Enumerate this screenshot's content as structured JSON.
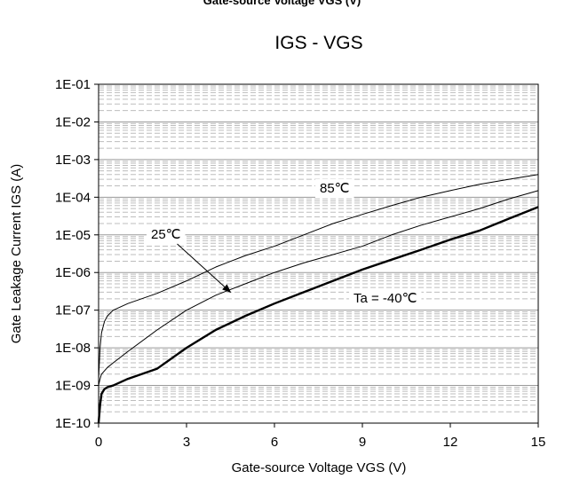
{
  "top_clipped_text": "Gate-source  Voltage VGS (V)",
  "chart_data": {
    "type": "line",
    "title": "IGS - VGS",
    "xlabel": "Gate-source Voltage VGS (V)",
    "ylabel": "Gate Leakage Current IGS (A)",
    "xlim": [
      0,
      15
    ],
    "ylim": [
      1e-10,
      0.1
    ],
    "yscale": "log",
    "grid": true,
    "x_ticks": [
      "0",
      "3",
      "6",
      "9",
      "12",
      "15"
    ],
    "y_ticks": [
      "1E-10",
      "1E-09",
      "1E-08",
      "1E-07",
      "1E-06",
      "1E-05",
      "1E-04",
      "1E-03",
      "1E-02",
      "1E-01"
    ],
    "series": [
      {
        "name": "85℃",
        "x": [
          0,
          0.05,
          0.1,
          0.2,
          0.3,
          0.5,
          1,
          2,
          3,
          4,
          5,
          6,
          7,
          8,
          9,
          10,
          11,
          12,
          13,
          14,
          15
        ],
        "y": [
          1.5e-09,
          1e-08,
          2.5e-08,
          5e-08,
          7e-08,
          1e-07,
          1.5e-07,
          2.8e-07,
          6e-07,
          1.4e-06,
          2.8e-06,
          5e-06,
          1e-05,
          2e-05,
          3.5e-05,
          6e-05,
          0.0001,
          0.00015,
          0.00022,
          0.0003,
          0.0004
        ]
      },
      {
        "name": "25℃",
        "x": [
          0,
          0.05,
          0.1,
          0.3,
          0.5,
          1,
          2,
          3,
          4,
          5,
          6,
          7,
          8,
          9,
          10,
          11,
          12,
          13,
          14,
          15
        ],
        "y": [
          1e-09,
          1.5e-09,
          2e-09,
          3e-09,
          4e-09,
          8e-09,
          3e-08,
          1e-07,
          2.5e-07,
          5e-07,
          1e-06,
          1.8e-06,
          3e-06,
          5e-06,
          1e-05,
          1.8e-05,
          3e-05,
          5e-05,
          9e-05,
          0.00015
        ]
      },
      {
        "name": "Ta = -40℃",
        "x": [
          0,
          0.05,
          0.1,
          0.2,
          0.3,
          0.5,
          1,
          2,
          3,
          4,
          5,
          6,
          7,
          8,
          9,
          10,
          11,
          12,
          13,
          14,
          15
        ],
        "y": [
          1e-10,
          3e-10,
          6e-10,
          8e-10,
          9e-10,
          1e-09,
          1.5e-09,
          2.8e-09,
          1e-08,
          3e-08,
          7e-08,
          1.5e-07,
          3e-07,
          6e-07,
          1.2e-06,
          2.2e-06,
          4e-06,
          7.5e-06,
          1.3e-05,
          2.7e-05,
          5.5e-05
        ]
      }
    ],
    "annotations": [
      {
        "text": "85℃",
        "series": "85℃"
      },
      {
        "text": "25℃",
        "series": "25℃",
        "arrow": true,
        "arrow_to": {
          "x": 4.5,
          "y": 3e-07
        }
      },
      {
        "text": "Ta = -40℃",
        "series": "Ta = -40℃"
      }
    ]
  }
}
